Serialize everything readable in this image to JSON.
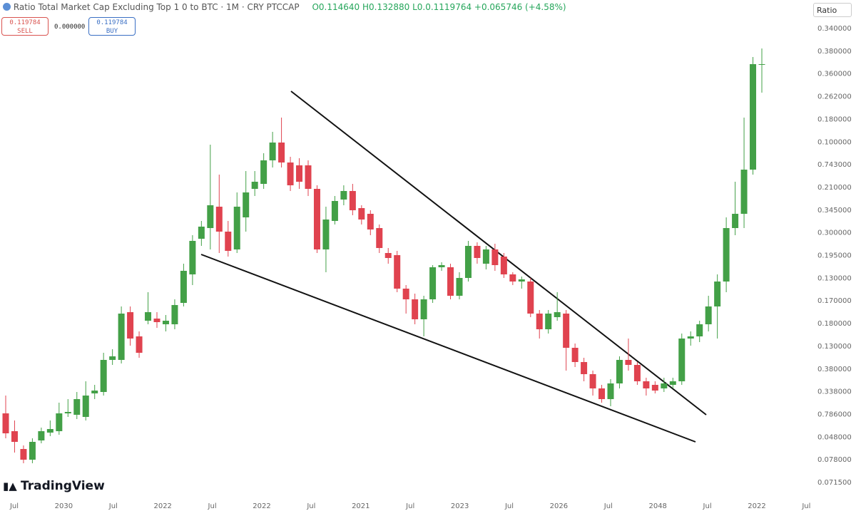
{
  "chart_data": {
    "type": "candlestick",
    "title": "Ratio Total Market Cap Excluding Top 1 0 to BTC · 1M · CRY PTCCAP",
    "subtitle": "O0.114640 H0.132880 L0.0.1119764 +0.065746 (+4.58%)",
    "sell_price": "0.119784",
    "sell_label": "SELL",
    "spread": "0.000000",
    "buy_price": "0.119784",
    "buy_label": "BUY",
    "scale_label": "Ratio",
    "brand": "TradingView",
    "up_color": "#43a047",
    "down_color": "#e0434f",
    "ylim": [
      0,
      700
    ],
    "price_axis_labels": [
      "0.340000",
      "0.380000",
      "0.360000",
      "0.262000",
      "0.180000",
      "0.100000",
      "0.743000",
      "0.210000",
      "0.345000",
      "0.300000",
      "0.195000",
      "0.130000",
      "0.170000",
      "0.180000",
      "0.130000",
      "0.380000",
      "0.338000",
      "0.786000",
      "0.048000",
      "0.078000",
      "0.071500"
    ],
    "time_axis_labels": [
      "Jul",
      "2030",
      "Jul",
      "2022",
      "Jul",
      "2022",
      "Jul",
      "2021",
      "Jul",
      "2023",
      "Jul",
      "2026",
      "Jul",
      "2048",
      "Jul",
      "2022",
      "Jul"
    ],
    "open": [
      120,
      95,
      70,
      55,
      82,
      93,
      95,
      120,
      118,
      115,
      148,
      150,
      195,
      195,
      262,
      228,
      250,
      253,
      245,
      245,
      275,
      315,
      365,
      380,
      410,
      375,
      350,
      395,
      435,
      442,
      475,
      500,
      472,
      468,
      468,
      435,
      350,
      390,
      420,
      432,
      408,
      400,
      380,
      345,
      342,
      295,
      280,
      252,
      280,
      325,
      325,
      285,
      310,
      355,
      330,
      350,
      340,
      315,
      305,
      305,
      260,
      238,
      255,
      260,
      212,
      192,
      175,
      155,
      140,
      162,
      195,
      188,
      165,
      160,
      155,
      160,
      165,
      225,
      228,
      245,
      270,
      305,
      380,
      400,
      462,
      610
    ],
    "high": [
      145,
      110,
      75,
      85,
      100,
      110,
      135,
      140,
      150,
      165,
      160,
      205,
      210,
      270,
      270,
      235,
      290,
      262,
      258,
      280,
      330,
      370,
      390,
      497,
      455,
      390,
      430,
      460,
      460,
      485,
      515,
      535,
      480,
      478,
      475,
      440,
      410,
      425,
      440,
      442,
      412,
      405,
      385,
      352,
      348,
      300,
      288,
      285,
      328,
      332,
      330,
      318,
      362,
      360,
      355,
      358,
      345,
      318,
      312,
      310,
      265,
      265,
      290,
      265,
      218,
      198,
      180,
      160,
      168,
      200,
      225,
      192,
      170,
      165,
      170,
      170,
      232,
      235,
      250,
      285,
      315,
      395,
      445,
      535,
      620,
      632
    ],
    "low": [
      85,
      65,
      50,
      50,
      78,
      88,
      90,
      115,
      112,
      110,
      140,
      145,
      188,
      190,
      215,
      198,
      245,
      240,
      235,
      238,
      270,
      300,
      355,
      350,
      345,
      340,
      345,
      375,
      425,
      435,
      465,
      465,
      432,
      435,
      425,
      345,
      318,
      385,
      412,
      398,
      385,
      370,
      345,
      330,
      290,
      260,
      245,
      228,
      275,
      320,
      280,
      280,
      305,
      330,
      322,
      320,
      310,
      300,
      295,
      255,
      225,
      232,
      250,
      180,
      185,
      165,
      145,
      135,
      130,
      155,
      180,
      160,
      145,
      148,
      150,
      155,
      160,
      215,
      220,
      235,
      225,
      290,
      370,
      380,
      455,
      570
    ],
    "close": [
      92,
      80,
      55,
      80,
      95,
      98,
      120,
      122,
      140,
      145,
      152,
      195,
      200,
      260,
      225,
      205,
      262,
      248,
      250,
      272,
      320,
      362,
      382,
      412,
      375,
      348,
      410,
      430,
      445,
      475,
      500,
      472,
      440,
      445,
      435,
      350,
      392,
      418,
      432,
      405,
      392,
      378,
      352,
      338,
      295,
      280,
      252,
      280,
      325,
      328,
      285,
      310,
      355,
      338,
      350,
      328,
      315,
      305,
      308,
      260,
      238,
      260,
      262,
      212,
      192,
      175,
      155,
      140,
      162,
      195,
      188,
      165,
      155,
      152,
      162,
      165,
      225,
      228,
      245,
      270,
      305,
      380,
      400,
      462,
      610,
      610
    ]
  }
}
